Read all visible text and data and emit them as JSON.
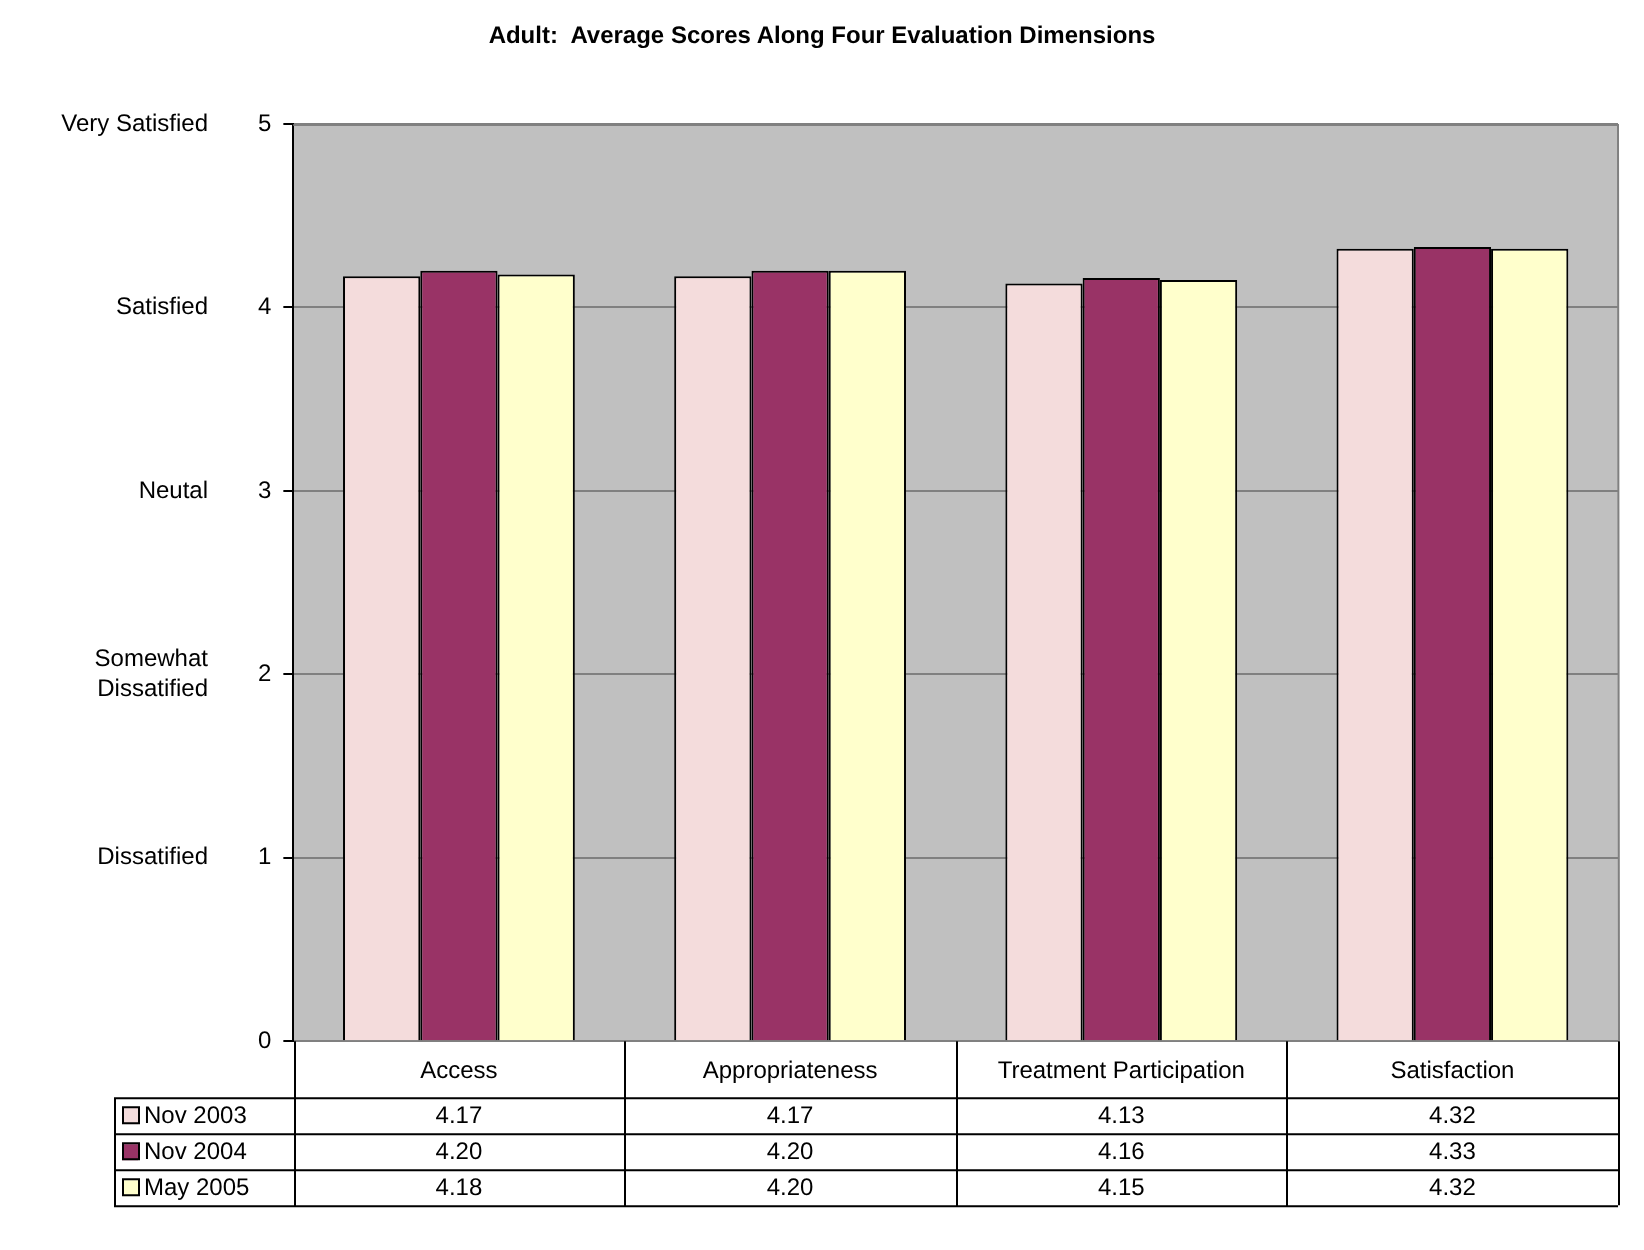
{
  "chart_data": {
    "type": "bar",
    "title": "Adult:  Average Scores Along Four Evaluation Dimensions",
    "categories": [
      "Access",
      "Appropriateness",
      "Treatment Participation",
      "Satisfaction"
    ],
    "series": [
      {
        "name": "Nov 2003",
        "color": "#f4dcdc",
        "values": [
          4.17,
          4.17,
          4.13,
          4.32
        ],
        "value_labels": [
          "4.17",
          "4.17",
          "4.13",
          "4.32"
        ]
      },
      {
        "name": "Nov 2004",
        "color": "#993366",
        "values": [
          4.2,
          4.2,
          4.16,
          4.33
        ],
        "value_labels": [
          "4.20",
          "4.20",
          "4.16",
          "4.33"
        ]
      },
      {
        "name": "May 2005",
        "color": "#ffffcc",
        "values": [
          4.18,
          4.2,
          4.15,
          4.32
        ],
        "value_labels": [
          "4.18",
          "4.20",
          "4.15",
          "4.32"
        ]
      }
    ],
    "ylim": [
      0,
      5
    ],
    "yticks": [
      0,
      1,
      2,
      3,
      4,
      5
    ],
    "annotations": [
      "Very Satisfied",
      "Satisfied",
      "Neutal",
      "Somewhat Dissatified",
      "Dissatified"
    ],
    "grid": "y",
    "legend": "bottom"
  }
}
